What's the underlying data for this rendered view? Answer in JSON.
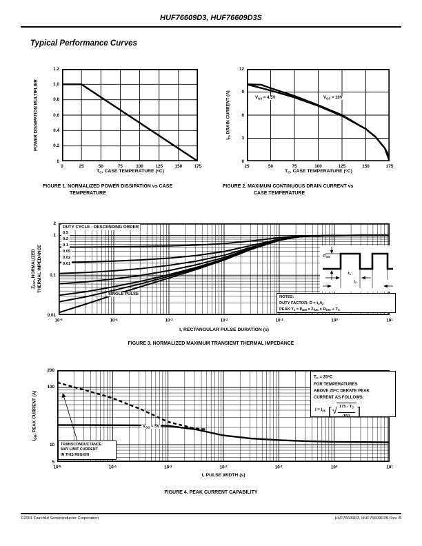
{
  "page": {
    "header_title": "HUF76609D3, HUF76609D3S",
    "section_title": "Typical Performance Curves",
    "footer_left": "©2001 Fairchild Semiconductor Corporation",
    "footer_right": "HUF76609D3, HUF76609D3S Rev. B"
  },
  "chart_data": [
    {
      "figure": "FIGURE 1",
      "type": "line",
      "caption_line1": "FIGURE 1.  NORMALIZED POWER DISSIPATION vs CASE",
      "caption_line2": "TEMPERATURE",
      "xlabel": "T_{C}, CASE TEMPERATURE (^{o}C)",
      "ylabel": "POWER DISSIPATION MULTIPLIER",
      "xscale": "linear",
      "xlim": [
        0,
        175
      ],
      "xtick_vals": [
        0,
        25,
        50,
        75,
        100,
        125,
        150,
        175
      ],
      "xtick_labels": [
        "0",
        "25",
        "50",
        "75",
        "100",
        "125",
        "150",
        "175"
      ],
      "yscale": "linear",
      "ylim": [
        0,
        1.2
      ],
      "ytick_vals": [
        0,
        0.2,
        0.4,
        0.6,
        0.8,
        1.0,
        1.2
      ],
      "ytick_labels": [
        "0",
        "0.2",
        "0.4",
        "0.6",
        "0.8",
        "1.0",
        "1.2"
      ],
      "grid": true,
      "series": [
        {
          "name": "power dissipation multiplier",
          "style": "solid",
          "x": [
            0,
            25,
            175
          ],
          "y": [
            1.0,
            1.0,
            0.0
          ]
        }
      ]
    },
    {
      "figure": "FIGURE 2",
      "type": "line",
      "caption_line1": "FIGURE 2.  MAXIMUM CONTINUOUS DRAIN CURRENT vs",
      "caption_line2": "CASE TEMPERATURE",
      "xlabel": "T_{C}, CASE TEMPERATURE (^{o}C)",
      "ylabel": "I_{D}, DRAIN CURRENT (A)",
      "xscale": "linear",
      "xlim": [
        25,
        175
      ],
      "xtick_vals": [
        25,
        50,
        75,
        100,
        125,
        150,
        175
      ],
      "xtick_labels": [
        "25",
        "50",
        "75",
        "100",
        "125",
        "150",
        "175"
      ],
      "yscale": "linear",
      "ylim": [
        0,
        12
      ],
      "ytick_vals": [
        0,
        3,
        6,
        9,
        12
      ],
      "ytick_labels": [
        "0",
        "3",
        "6",
        "9",
        "12"
      ],
      "grid": true,
      "label_vgs45": "V_{GS} = 4.5V",
      "label_vgs10": "V_{GS} = 10V",
      "series": [
        {
          "name": "VGS = 4.5V",
          "style": "solid",
          "x": [
            25,
            40,
            50,
            75,
            100,
            125,
            150,
            160,
            170,
            175
          ],
          "y": [
            10.0,
            9.95,
            9.5,
            8.5,
            7.3,
            6.0,
            4.2,
            3.2,
            1.7,
            0.0
          ]
        },
        {
          "name": "VGS = 10V",
          "style": "solid",
          "x": [
            25,
            50,
            75,
            100,
            125,
            150,
            160,
            170,
            174,
            175
          ],
          "y": [
            10.0,
            9.2,
            8.3,
            7.2,
            5.9,
            4.2,
            3.2,
            1.7,
            0.8,
            0.0
          ]
        }
      ]
    },
    {
      "figure": "FIGURE 3",
      "type": "line",
      "caption_line1": "FIGURE 3.  NORMALIZED MAXIMUM TRANSIENT THERMAL IMPEDANCE",
      "xlabel": "t, RECTANGULAR PULSE DURATION (s)",
      "ylabel_line1": "Z_{θJC}, NORMALIZED",
      "ylabel_line2": "THERMAL IMPEDANCE",
      "xscale": "log",
      "xlim": [
        1e-05,
        10
      ],
      "xtick_exponents": [
        -5,
        -4,
        -3,
        -2,
        -1,
        0,
        1
      ],
      "yscale": "log",
      "ylim": [
        0.01,
        2
      ],
      "ytick_vals": [
        2,
        1,
        0.1,
        0.01
      ],
      "ytick_labels": [
        "2",
        "1",
        "0.1",
        "0.01"
      ],
      "legend_title": "DUTY CYCLE - DESCENDING ORDER",
      "duty_cycles": [
        "0.5",
        "0.2",
        "0.1",
        "0.05",
        "0.02",
        "0.01"
      ],
      "duty_values": [
        0.5,
        0.2,
        0.1,
        0.05,
        0.02,
        0.01
      ],
      "single_pulse_label": "SINGLE PULSE",
      "single_pulse_logt": [
        -5,
        -4.5,
        -4,
        -3.5,
        -3,
        -2.5,
        -2,
        -1.5,
        -1,
        -0.7,
        -0.5,
        0,
        0.5,
        1
      ],
      "single_pulse_z": [
        0.0115,
        0.019,
        0.032,
        0.052,
        0.085,
        0.14,
        0.24,
        0.45,
        0.75,
        0.9,
        0.95,
        0.99,
        1.0,
        1.0
      ],
      "notes_line1": "NOTES:",
      "notes_line2": "DUTY FACTOR: D = t_{1}/t_{2}",
      "notes_line3": "PEAK T_{J} = P_{DM} x Z_{θJC} x R_{θJC} + T_{C}",
      "inset": {
        "pdm_label": "P_{DM}",
        "t1_label": "t_{1}",
        "t2_label": "t_{2}"
      }
    },
    {
      "figure": "FIGURE 4",
      "type": "line",
      "caption_line1": "FIGURE 4.  PEAK CURRENT CAPABILITY",
      "xlabel": "t, PULSE WIDTH (s)",
      "ylabel": "I_{DM}, PEAK CURRENT (A)",
      "xscale": "log",
      "xlim": [
        1e-05,
        10
      ],
      "xtick_exponents": [
        -5,
        -4,
        -3,
        -2,
        -1,
        0,
        1
      ],
      "yscale": "log",
      "ylim": [
        5,
        200
      ],
      "ytick_vals": [
        200,
        100,
        10,
        5
      ],
      "ytick_labels": [
        "200",
        "100",
        "10",
        "5"
      ],
      "label_vgs5": "V_{GS} = 5V",
      "series": [
        {
          "name": "VGS = 5V peak current",
          "style": "solid",
          "logt": [
            -5,
            -4.5,
            -4,
            -3.5,
            -3,
            -2.5,
            -2,
            -1.5,
            -1,
            -0.5,
            0,
            0.5,
            1
          ],
          "i": [
            22,
            22,
            21.9,
            21.8,
            21.3,
            18.5,
            14.5,
            12.8,
            12.0,
            11.5,
            11.2,
            11.1,
            11.0
          ]
        },
        {
          "name": "transconductance limit",
          "style": "dashed",
          "logt": [
            -5,
            -4.5,
            -4,
            -3.5,
            -3,
            -2.5,
            -2.3
          ],
          "i": [
            122,
            90,
            65,
            42,
            25,
            19,
            18.6
          ]
        }
      ],
      "warning_line1": "TRANSCONDUCTANCE",
      "warning_line2": "MAY LIMIT CURRENT",
      "warning_line3": "IN THIS REGION",
      "derate_line1": "T_{C} = 25^{o}C",
      "derate_line2": "FOR TEMPERATURES",
      "derate_line3": "ABOVE 25^{o}C DERATE PEAK",
      "derate_line4": "CURRENT AS FOLLOWS:",
      "formula": {
        "lhs": "I = I_{25}",
        "lbracket": "[",
        "radical": "√",
        "numerator": "175 - T_{C}",
        "denominator": "150",
        "rbracket": "]"
      }
    }
  ]
}
